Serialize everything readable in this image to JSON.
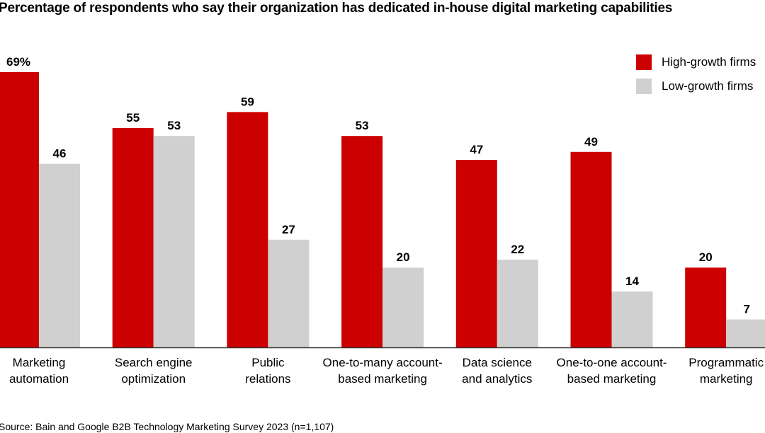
{
  "chart_data": {
    "type": "bar",
    "title": "Percentage of respondents who say their organization has dedicated in-house digital marketing capabilities",
    "source": "Source: Bain and Google B2B Technology Marketing Survey 2023 (n=1,107)",
    "categories": [
      [
        "Marketing",
        "automation"
      ],
      [
        "Search engine",
        "optimization"
      ],
      [
        "Public",
        "relations"
      ],
      [
        "One-to-many account-",
        "based marketing"
      ],
      [
        "Data science",
        "and analytics"
      ],
      [
        "One-to-one account-",
        "based marketing"
      ],
      [
        "Programmatic",
        "marketing"
      ]
    ],
    "series": [
      {
        "name": "High-growth firms",
        "color": "#cc0000",
        "values": [
          69,
          55,
          59,
          53,
          47,
          49,
          20
        ]
      },
      {
        "name": "Low-growth firms",
        "color": "#d0d0d0",
        "values": [
          46,
          53,
          27,
          20,
          22,
          14,
          7
        ]
      }
    ],
    "first_label_suffix": "%",
    "ylim": [
      0,
      69
    ],
    "grid": false,
    "legend_placement": "top-right",
    "axis_color": "#333333"
  }
}
